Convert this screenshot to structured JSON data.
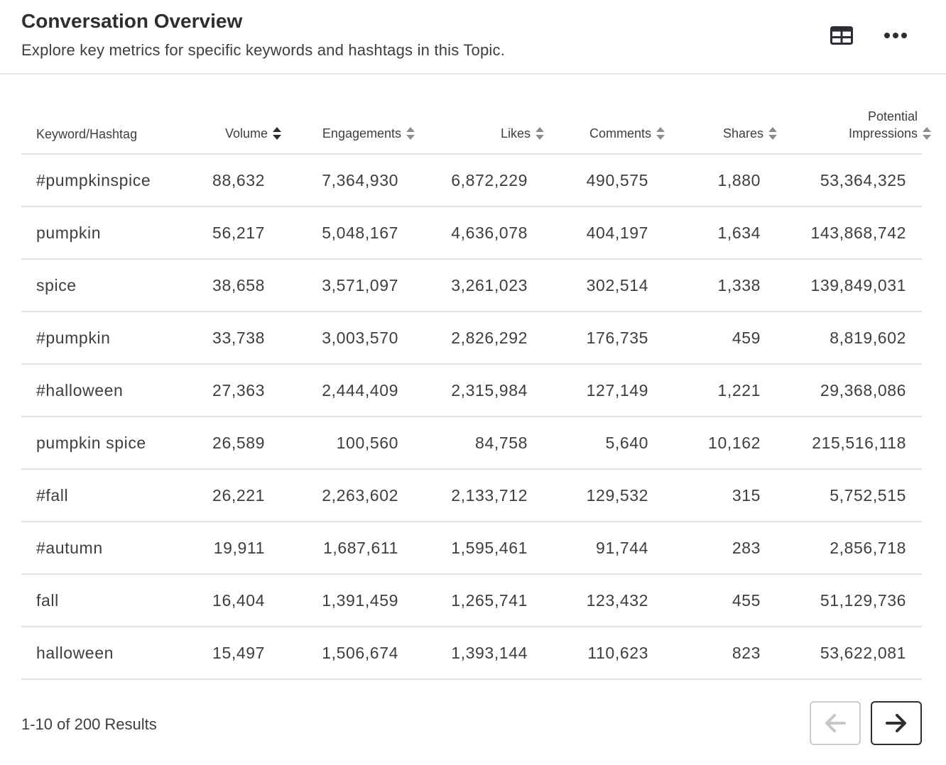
{
  "header": {
    "title": "Conversation Overview",
    "subtitle": "Explore key metrics for specific keywords and hashtags in this Topic.",
    "table_view_icon": "table-grid-icon",
    "more_icon": "more-horizontal-icon"
  },
  "table": {
    "columns": [
      {
        "label": "Keyword/Hashtag"
      },
      {
        "label": "Volume",
        "sort": "desc"
      },
      {
        "label": "Engagements",
        "sort": "none"
      },
      {
        "label": "Likes",
        "sort": "none"
      },
      {
        "label": "Comments",
        "sort": "none"
      },
      {
        "label": "Shares",
        "sort": "none"
      },
      {
        "label_line1": "Potential",
        "label_line2": "Impressions",
        "sort": "none"
      }
    ],
    "rows": [
      {
        "keyword": "#pumpkinspice",
        "volume": "88,632",
        "engagements": "7,364,930",
        "likes": "6,872,229",
        "comments": "490,575",
        "shares": "1,880",
        "impressions": "53,364,325"
      },
      {
        "keyword": "pumpkin",
        "volume": "56,217",
        "engagements": "5,048,167",
        "likes": "4,636,078",
        "comments": "404,197",
        "shares": "1,634",
        "impressions": "143,868,742"
      },
      {
        "keyword": "spice",
        "volume": "38,658",
        "engagements": "3,571,097",
        "likes": "3,261,023",
        "comments": "302,514",
        "shares": "1,338",
        "impressions": "139,849,031"
      },
      {
        "keyword": "#pumpkin",
        "volume": "33,738",
        "engagements": "3,003,570",
        "likes": "2,826,292",
        "comments": "176,735",
        "shares": "459",
        "impressions": "8,819,602"
      },
      {
        "keyword": "#halloween",
        "volume": "27,363",
        "engagements": "2,444,409",
        "likes": "2,315,984",
        "comments": "127,149",
        "shares": "1,221",
        "impressions": "29,368,086"
      },
      {
        "keyword": "pumpkin spice",
        "volume": "26,589",
        "engagements": "100,560",
        "likes": "84,758",
        "comments": "5,640",
        "shares": "10,162",
        "impressions": "215,516,118"
      },
      {
        "keyword": "#fall",
        "volume": "26,221",
        "engagements": "2,263,602",
        "likes": "2,133,712",
        "comments": "129,532",
        "shares": "315",
        "impressions": "5,752,515"
      },
      {
        "keyword": "#autumn",
        "volume": "19,911",
        "engagements": "1,687,611",
        "likes": "1,595,461",
        "comments": "91,744",
        "shares": "283",
        "impressions": "2,856,718"
      },
      {
        "keyword": "fall",
        "volume": "16,404",
        "engagements": "1,391,459",
        "likes": "1,265,741",
        "comments": "123,432",
        "shares": "455",
        "impressions": "51,129,736"
      },
      {
        "keyword": "halloween",
        "volume": "15,497",
        "engagements": "1,506,674",
        "likes": "1,393,144",
        "comments": "110,623",
        "shares": "823",
        "impressions": "53,622,081"
      }
    ]
  },
  "footer": {
    "results_text": "1-10 of 200 Results",
    "prev_icon": "arrow-left-icon",
    "next_icon": "arrow-right-icon",
    "prev_enabled": false,
    "next_enabled": true
  },
  "colors": {
    "text": "#3a3f44",
    "title": "#2b2f33",
    "divider": "#dfe2e4",
    "disabled": "#c9cdd0"
  }
}
